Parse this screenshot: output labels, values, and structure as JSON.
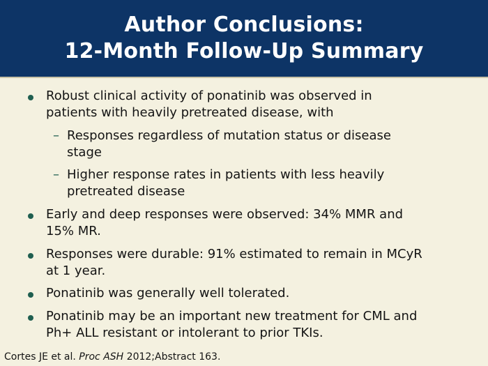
{
  "header": {
    "title_line1": "Author Conclusions:",
    "title_line2": "12-Month Follow-Up Summary"
  },
  "bullets": [
    {
      "lines": [
        "Robust clinical activity of ponatinib was observed in",
        "patients with heavily pretreated disease, with"
      ],
      "sub": [
        {
          "lines": [
            "Responses regardless of mutation status or disease",
            "stage"
          ]
        },
        {
          "lines": [
            "Higher response rates in patients with less heavily",
            "pretreated disease"
          ]
        }
      ]
    },
    {
      "lines": [
        "Early and deep responses were observed: 34% MMR and",
        "15% MR."
      ]
    },
    {
      "lines": [
        "Responses were durable: 91% estimated to remain in MCyR",
        "at 1 year."
      ]
    },
    {
      "lines": [
        "Ponatinib was generally well tolerated."
      ]
    },
    {
      "lines": [
        "Ponatinib may be an important new treatment for CML and",
        "Ph+ ALL resistant or intolerant to prior TKIs."
      ]
    }
  ],
  "citation": {
    "authors": "Cortes JE et al.",
    "journal": "Proc ASH",
    "ref": "2012;Abstract 163."
  },
  "sub_marker": "–",
  "colors": {
    "header_bg": "#0d3466",
    "page_bg": "#f4f1e0",
    "bullet": "#1f5f50",
    "text": "#141414"
  }
}
